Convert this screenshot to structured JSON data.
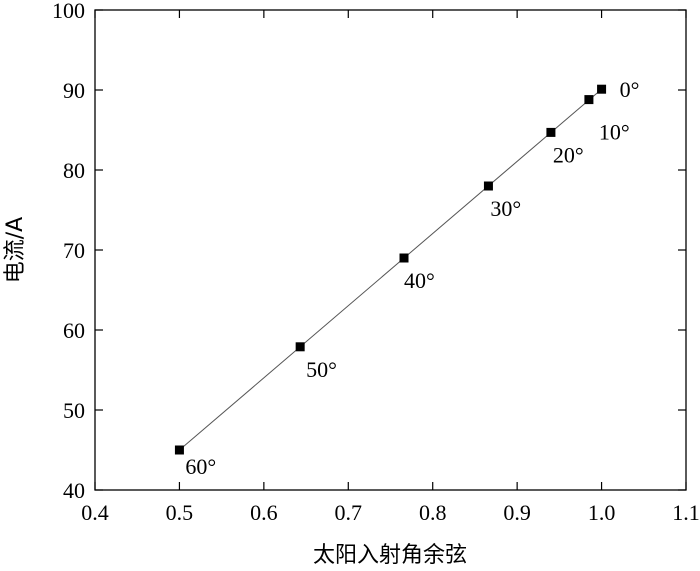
{
  "chart_data": {
    "type": "scatter",
    "xlabel": "太阳入射角余弦",
    "ylabel": "电流/A",
    "xlim": [
      0.4,
      1.1
    ],
    "ylim": [
      40,
      100
    ],
    "x_ticks": [
      0.4,
      0.5,
      0.6,
      0.7,
      0.8,
      0.9,
      1.0,
      1.1
    ],
    "x_tick_labels": [
      "0.4",
      "0.5",
      "0.6",
      "0.7",
      "0.8",
      "0.9",
      "1.0",
      "1.1"
    ],
    "y_ticks": [
      40,
      50,
      60,
      70,
      80,
      90,
      100
    ],
    "y_tick_labels": [
      "40",
      "50",
      "60",
      "70",
      "80",
      "90",
      "100"
    ],
    "grid": false,
    "fit_line": true,
    "points": [
      {
        "x": 0.5,
        "y": 45.0,
        "label": "60°"
      },
      {
        "x": 0.643,
        "y": 57.9,
        "label": "50°"
      },
      {
        "x": 0.766,
        "y": 69.0,
        "label": "40°"
      },
      {
        "x": 0.866,
        "y": 78.0,
        "label": "30°"
      },
      {
        "x": 0.94,
        "y": 84.7,
        "label": "20°"
      },
      {
        "x": 0.985,
        "y": 88.8,
        "label": "10°"
      },
      {
        "x": 1.0,
        "y": 90.1,
        "label": "0°"
      }
    ]
  }
}
